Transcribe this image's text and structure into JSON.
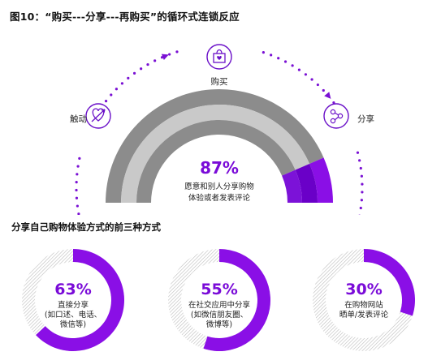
{
  "title": "图10：“购买---分享---再购买”的循环式连锁反应",
  "cycle": {
    "labels": {
      "trigger": "触动",
      "purchase": "购买",
      "share": "分享"
    },
    "icons": {
      "trigger": "heart-arrow-icon",
      "purchase": "shopping-bag-icon",
      "share": "share-network-icon"
    },
    "percent": "87%",
    "percent_value": 87,
    "description": [
      "愿意和别人分享购物",
      "体验或者发表评论"
    ]
  },
  "subheading": "分享自己购物体验方式的前三种方式",
  "chart_data": {
    "type": "pie",
    "title": "分享自己购物体验方式的前三种方式",
    "series": [
      {
        "value": 63,
        "label": "63%",
        "description": [
          "直接分享",
          "(如口述、电话、",
          "微信等)"
        ]
      },
      {
        "value": 55,
        "label": "55%",
        "description": [
          "在社交应用中分享",
          "(如微信朋友圈、",
          "微博等)"
        ]
      },
      {
        "value": 30,
        "label": "30%",
        "description": [
          "在购物网站",
          "晒单/发表评论"
        ]
      }
    ]
  },
  "colors": {
    "accent": "#8a0fe6",
    "accent_dark": "#6a00c8",
    "accent_mid": "#7c12d8",
    "gray_dark": "#8c8c8c",
    "gray_light": "#c9c9c9",
    "dots": "#7a10d4"
  }
}
